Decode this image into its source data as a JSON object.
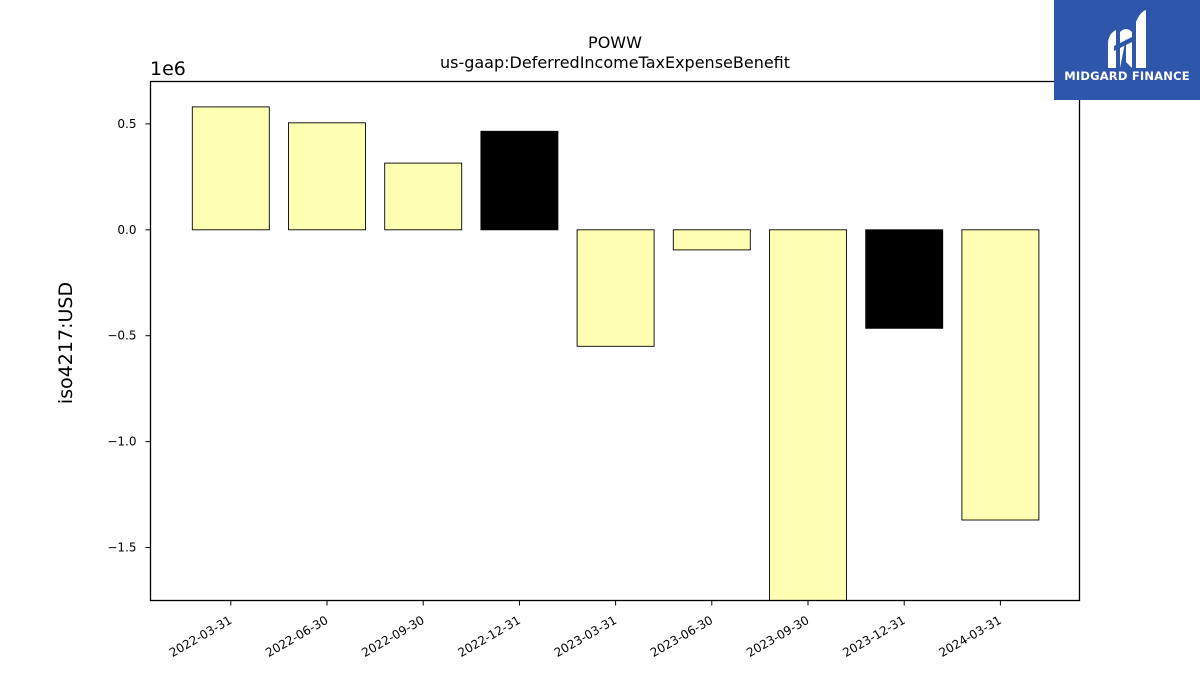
{
  "chart_data": {
    "type": "bar",
    "title": "POWW",
    "subtitle": "us-gaap:DeferredIncomeTaxExpenseBenefit",
    "ylabel": "iso4217:USD",
    "xlabel": "",
    "offset_label": "1e6",
    "y_scale": 1000000,
    "ylim": [
      -1.75,
      0.7
    ],
    "yticks": [
      0.5,
      0.0,
      -0.5,
      -1.0,
      -1.5
    ],
    "ytick_labels": [
      "0.5",
      "0.0",
      "−0.5",
      "−1.0",
      "−1.5"
    ],
    "categories": [
      "2022-03-31",
      "2022-06-30",
      "2022-09-30",
      "2022-12-31",
      "2023-03-31",
      "2023-06-30",
      "2023-09-30",
      "2023-12-31",
      "2024-03-31"
    ],
    "values": [
      0.58,
      0.505,
      0.315,
      0.465,
      -0.55,
      -0.095,
      -1.75,
      -0.465,
      -1.37
    ],
    "bar_colors": [
      "#ffffb3",
      "#ffffb3",
      "#ffffb3",
      "#000000",
      "#ffffb3",
      "#ffffb3",
      "#ffffb3",
      "#000000",
      "#ffffb3"
    ],
    "grid": false
  },
  "logo": {
    "text": "MIDGARD FINANCE",
    "background": "#2e57ac"
  }
}
